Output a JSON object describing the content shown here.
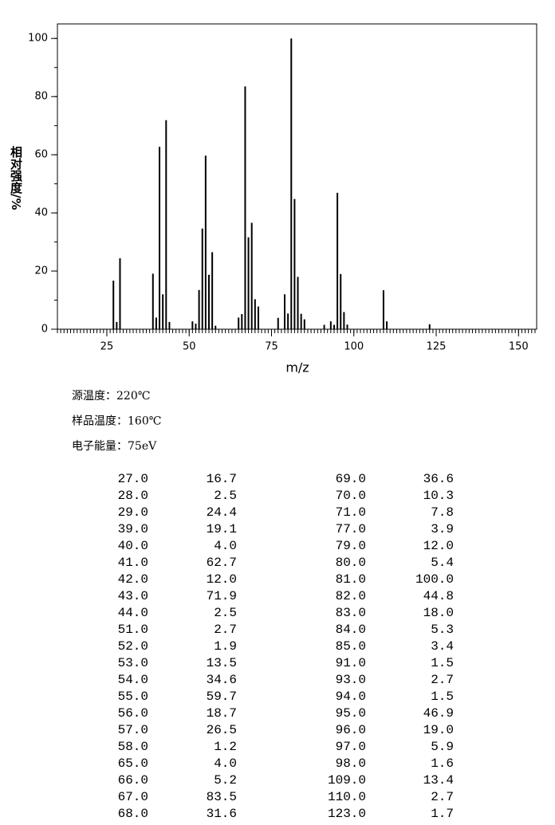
{
  "chart_data": {
    "type": "bar",
    "ylabel": "相对强度/%",
    "xlabel": "m/z",
    "color": "#000000",
    "x": [
      27,
      28,
      29,
      39,
      40,
      41,
      42,
      43,
      44,
      51,
      52,
      53,
      54,
      55,
      56,
      57,
      58,
      65,
      66,
      67,
      68,
      69,
      70,
      71,
      77,
      79,
      80,
      81,
      82,
      83,
      84,
      85,
      91,
      93,
      94,
      95,
      96,
      97,
      98,
      109,
      110,
      123
    ],
    "values": [
      16.7,
      2.5,
      24.4,
      19.1,
      4.0,
      62.7,
      12.0,
      71.9,
      2.5,
      2.7,
      1.9,
      13.5,
      34.6,
      59.7,
      18.7,
      26.5,
      1.2,
      4.0,
      5.2,
      83.5,
      31.6,
      36.6,
      10.3,
      7.8,
      3.9,
      12.0,
      5.4,
      100.0,
      44.8,
      18.0,
      5.3,
      3.4,
      1.5,
      2.7,
      1.5,
      46.9,
      19.0,
      5.9,
      1.6,
      13.4,
      2.7,
      1.7
    ],
    "xlim": [
      10,
      155.5
    ],
    "xticks": [
      25,
      50,
      75,
      100,
      125,
      150
    ],
    "xminor": 1,
    "ylim": [
      0,
      105
    ],
    "yticks": [
      0,
      20,
      40,
      60,
      80,
      100
    ],
    "yminor": 10
  },
  "info": [
    "源温度：220℃",
    "样品温度：160℃",
    "电子能量：75eV"
  ],
  "table": {
    "rows": [
      [
        "27.0",
        "16.7",
        "69.0",
        "36.6"
      ],
      [
        "28.0",
        "2.5",
        "70.0",
        "10.3"
      ],
      [
        "29.0",
        "24.4",
        "71.0",
        "7.8"
      ],
      [
        "39.0",
        "19.1",
        "77.0",
        "3.9"
      ],
      [
        "40.0",
        "4.0",
        "79.0",
        "12.0"
      ],
      [
        "41.0",
        "62.7",
        "80.0",
        "5.4"
      ],
      [
        "42.0",
        "12.0",
        "81.0",
        "100.0"
      ],
      [
        "43.0",
        "71.9",
        "82.0",
        "44.8"
      ],
      [
        "44.0",
        "2.5",
        "83.0",
        "18.0"
      ],
      [
        "51.0",
        "2.7",
        "84.0",
        "5.3"
      ],
      [
        "52.0",
        "1.9",
        "85.0",
        "3.4"
      ],
      [
        "53.0",
        "13.5",
        "91.0",
        "1.5"
      ],
      [
        "54.0",
        "34.6",
        "93.0",
        "2.7"
      ],
      [
        "55.0",
        "59.7",
        "94.0",
        "1.5"
      ],
      [
        "56.0",
        "18.7",
        "95.0",
        "46.9"
      ],
      [
        "57.0",
        "26.5",
        "96.0",
        "19.0"
      ],
      [
        "58.0",
        "1.2",
        "97.0",
        "5.9"
      ],
      [
        "65.0",
        "4.0",
        "98.0",
        "1.6"
      ],
      [
        "66.0",
        "5.2",
        "109.0",
        "13.4"
      ],
      [
        "67.0",
        "83.5",
        "110.0",
        "2.7"
      ],
      [
        "68.0",
        "31.6",
        "123.0",
        "1.7"
      ]
    ]
  }
}
